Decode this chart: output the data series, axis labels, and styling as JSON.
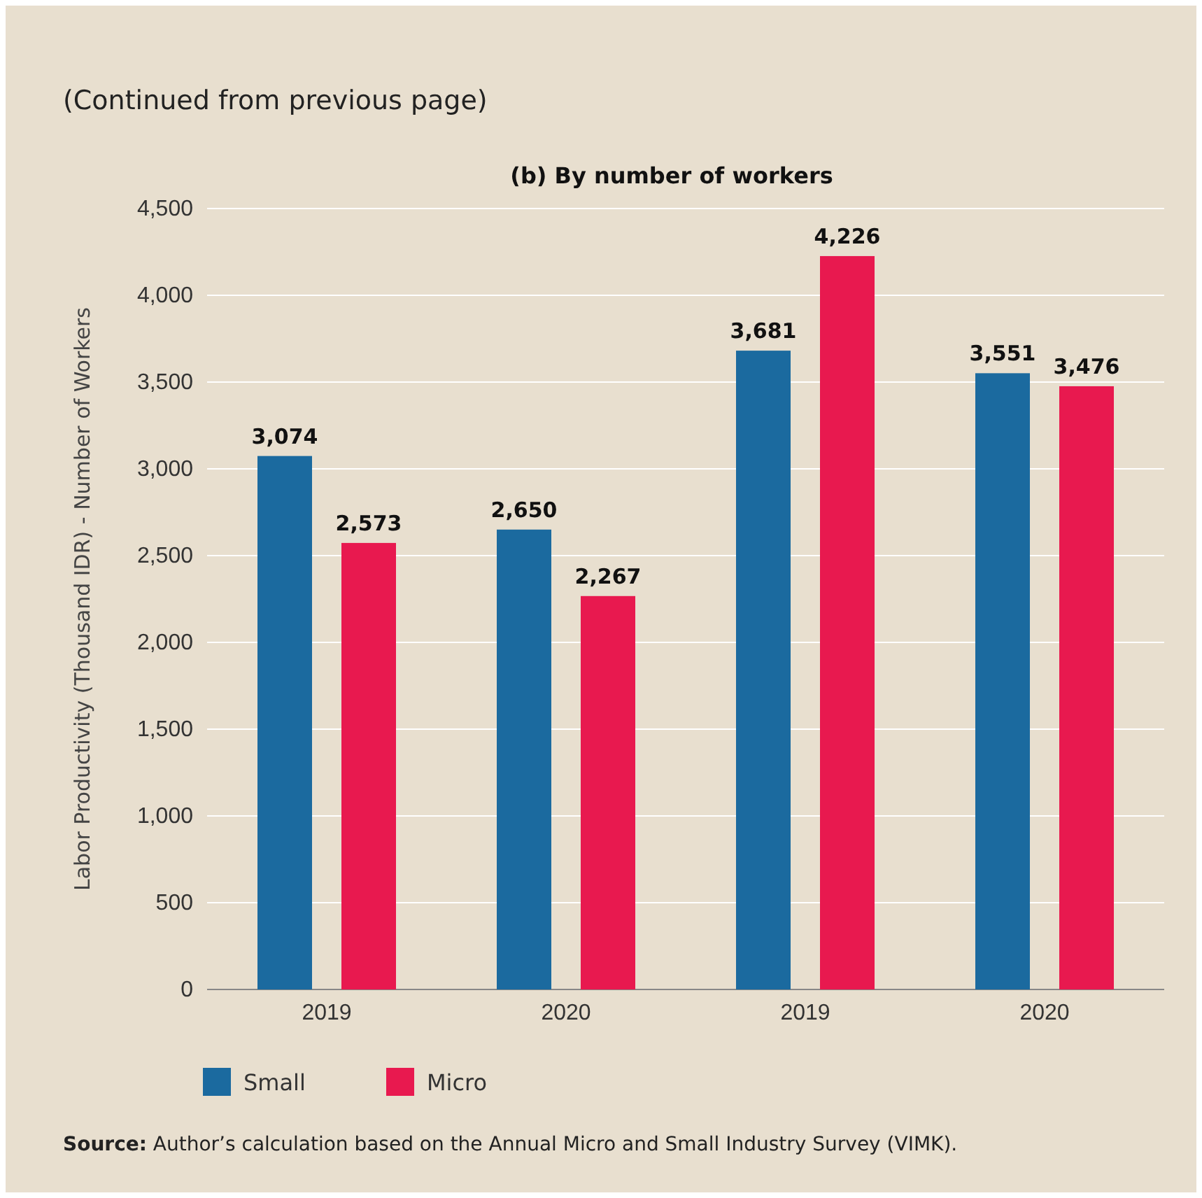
{
  "chart_data": {
    "type": "bar",
    "title": "(b) By number of workers",
    "ylabel": "Labor Productivity (Thousand IDR) - Number of Workers",
    "categories": [
      "2019",
      "2020",
      "2019",
      "2020"
    ],
    "series": [
      {
        "name": "Small",
        "color": "#1b6a9f",
        "values": [
          3074,
          2650,
          3681,
          3551
        ],
        "value_labels": [
          "3,074",
          "2,650",
          "3,681",
          "3,551"
        ]
      },
      {
        "name": "Micro",
        "color": "#e8194f",
        "values": [
          2573,
          2267,
          4226,
          3476
        ],
        "value_labels": [
          "2,573",
          "2,267",
          "4,226",
          "3,476"
        ]
      }
    ],
    "ylim": [
      0,
      4500
    ],
    "yticks": [
      {
        "value": 0,
        "label": "0"
      },
      {
        "value": 500,
        "label": "500"
      },
      {
        "value": 1000,
        "label": "1,000"
      },
      {
        "value": 1500,
        "label": "1,500"
      },
      {
        "value": 2000,
        "label": "2,000"
      },
      {
        "value": 2500,
        "label": "2,500"
      },
      {
        "value": 3000,
        "label": "3,000"
      },
      {
        "value": 3500,
        "label": "3,500"
      },
      {
        "value": 4000,
        "label": "4,000"
      },
      {
        "value": 4500,
        "label": "4,500"
      }
    ],
    "grid": "y",
    "legend": "bottom left",
    "annotations": [
      "(Continued from previous page)",
      "Source: Author’s calculation based on the Annual Micro and Small Industry Survey (VIMK)."
    ]
  }
}
